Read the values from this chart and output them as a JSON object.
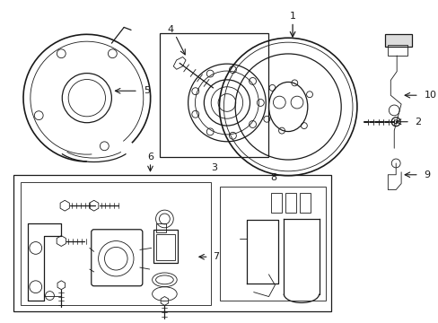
{
  "bg_color": "#ffffff",
  "line_color": "#1a1a1a",
  "fig_width": 4.89,
  "fig_height": 3.6,
  "dpi": 100,
  "gray": "#888888",
  "lgray": "#bbbbbb",
  "dgray": "#555555"
}
